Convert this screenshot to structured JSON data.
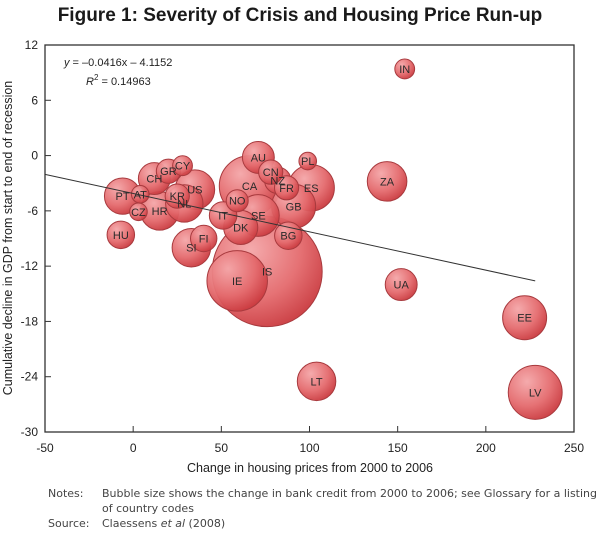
{
  "title": "Figure 1: Severity of Crisis and Housing Price Run-up",
  "notes": {
    "notes_label": "Notes:",
    "notes_text": "Bubble size shows the change in bank credit from 2000 to 2006; see Glossary for a listing of country codes",
    "source_label": "Source:",
    "source_text_pre": "Claessens ",
    "source_text_italic": "et al",
    "source_text_post": " (2008)"
  },
  "chart_data": {
    "type": "scatter",
    "subtype": "bubble",
    "title": "Figure 1: Severity of Crisis and Housing Price Run-up",
    "xlabel": "Change in housing prices from 2000 to 2006",
    "ylabel": "Cumulative decline in GDP from start to end of recession",
    "xlim": [
      -50,
      250
    ],
    "ylim": [
      -30,
      12
    ],
    "xticks": [
      -50,
      0,
      50,
      100,
      150,
      200,
      250
    ],
    "yticks": [
      12,
      6,
      0,
      -6,
      -12,
      -18,
      -24,
      -30
    ],
    "grid": false,
    "bubble_size_meaning": "Change in bank credit from 2000 to 2006 (relative, largest = 1.0)",
    "bubble_color": "#e05a5e",
    "bubble_edge_color": "#a83a3e",
    "trendline": {
      "slope": -0.0416,
      "intercept": -4.1152,
      "x_range": [
        -50,
        228
      ],
      "equation_text": "y = –0.0416x – 4.1152",
      "r2_label": "R",
      "r2_sup": "2",
      "r2_value": " = 0.14963",
      "color": "#333333"
    },
    "points": [
      {
        "label": "IS",
        "x": 76,
        "y": -12.6,
        "size": 1.0
      },
      {
        "label": "IE",
        "x": 59,
        "y": -13.6,
        "size": 0.55
      },
      {
        "label": "CA",
        "x": 66,
        "y": -3.3,
        "size": 0.55
      },
      {
        "label": "LV",
        "x": 228,
        "y": -25.7,
        "size": 0.49
      },
      {
        "label": "ES",
        "x": 101,
        "y": -3.5,
        "size": 0.42
      },
      {
        "label": "EE",
        "x": 222,
        "y": -17.6,
        "size": 0.4
      },
      {
        "label": "GB",
        "x": 91,
        "y": -5.5,
        "size": 0.4
      },
      {
        "label": "SE",
        "x": 71,
        "y": -6.5,
        "size": 0.38
      },
      {
        "label": "ZA",
        "x": 144,
        "y": -2.8,
        "size": 0.36
      },
      {
        "label": "US",
        "x": 35,
        "y": -3.7,
        "size": 0.36
      },
      {
        "label": "LT",
        "x": 104,
        "y": -24.5,
        "size": 0.35
      },
      {
        "label": "SI",
        "x": 33,
        "y": -10.0,
        "size": 0.35
      },
      {
        "label": "HR",
        "x": 15,
        "y": -6.0,
        "size": 0.35
      },
      {
        "label": "NL",
        "x": 29,
        "y": -5.2,
        "size": 0.34
      },
      {
        "label": "PT",
        "x": -6,
        "y": -4.4,
        "size": 0.33
      },
      {
        "label": "DK",
        "x": 61,
        "y": -7.8,
        "size": 0.31
      },
      {
        "label": "UA",
        "x": 152,
        "y": -14.0,
        "size": 0.29
      },
      {
        "label": "AU",
        "x": 71,
        "y": -0.2,
        "size": 0.29
      },
      {
        "label": "CH",
        "x": 12,
        "y": -2.5,
        "size": 0.29
      },
      {
        "label": "BG",
        "x": 88,
        "y": -8.7,
        "size": 0.25
      },
      {
        "label": "IT",
        "x": 51,
        "y": -6.5,
        "size": 0.25
      },
      {
        "label": "HU",
        "x": -7,
        "y": -8.6,
        "size": 0.25
      },
      {
        "label": "NZ",
        "x": 82,
        "y": -2.7,
        "size": 0.24
      },
      {
        "label": "FI",
        "x": 40,
        "y": -9.0,
        "size": 0.24
      },
      {
        "label": "FR",
        "x": 87,
        "y": -3.5,
        "size": 0.22
      },
      {
        "label": "CN",
        "x": 78,
        "y": -1.8,
        "size": 0.22
      },
      {
        "label": "GR",
        "x": 20,
        "y": -1.7,
        "size": 0.22
      },
      {
        "label": "KR",
        "x": 25,
        "y": -4.4,
        "size": 0.22
      },
      {
        "label": "NO",
        "x": 59,
        "y": -4.9,
        "size": 0.2
      },
      {
        "label": "IN",
        "x": 154,
        "y": 9.4,
        "size": 0.18
      },
      {
        "label": "CY",
        "x": 28,
        "y": -1.1,
        "size": 0.18
      },
      {
        "label": "PL",
        "x": 99,
        "y": -0.6,
        "size": 0.16
      },
      {
        "label": "CZ",
        "x": 3,
        "y": -6.1,
        "size": 0.16
      },
      {
        "label": "AT",
        "x": 4,
        "y": -4.2,
        "size": 0.16
      }
    ]
  }
}
